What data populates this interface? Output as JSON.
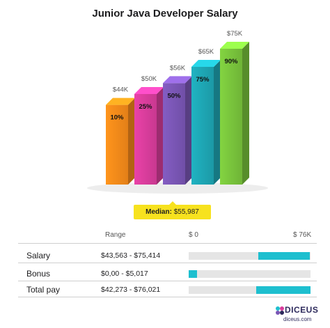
{
  "chart_data": {
    "type": "bar",
    "title": "Junior Java Developer Salary",
    "categories": [
      "10%",
      "25%",
      "50%",
      "75%",
      "90%"
    ],
    "values": [
      44,
      50,
      56,
      65,
      75
    ],
    "value_labels": [
      "$44K",
      "$50K",
      "$56K",
      "$65K",
      "$75K"
    ],
    "unit": "$K",
    "ylim": [
      0,
      75
    ],
    "colors": [
      "#f78a1a",
      "#d93d9c",
      "#7a56b5",
      "#1ea6b4",
      "#79c43c"
    ],
    "legend": "none",
    "grid": false
  },
  "median": {
    "label": "Median:",
    "value": "$55,987"
  },
  "range_table": {
    "headers": {
      "range": "Range",
      "min": "$ 0",
      "max": "$ 76K"
    },
    "scale_max": 76,
    "rows": [
      {
        "label": "Salary",
        "range": "$43,563 - $75,414",
        "low": 43.563,
        "high": 75.414
      },
      {
        "label": "Bonus",
        "range": "$0,00 - $5,017",
        "low": 0,
        "high": 5.017
      },
      {
        "label": "Total pay",
        "range": "$42,273 - $76,021",
        "low": 42.273,
        "high": 76.021
      }
    ]
  },
  "brand": {
    "name": "DICEUS",
    "url": "diceus.com",
    "color": "#2d2a5c",
    "accent": "#1ebfcf"
  }
}
